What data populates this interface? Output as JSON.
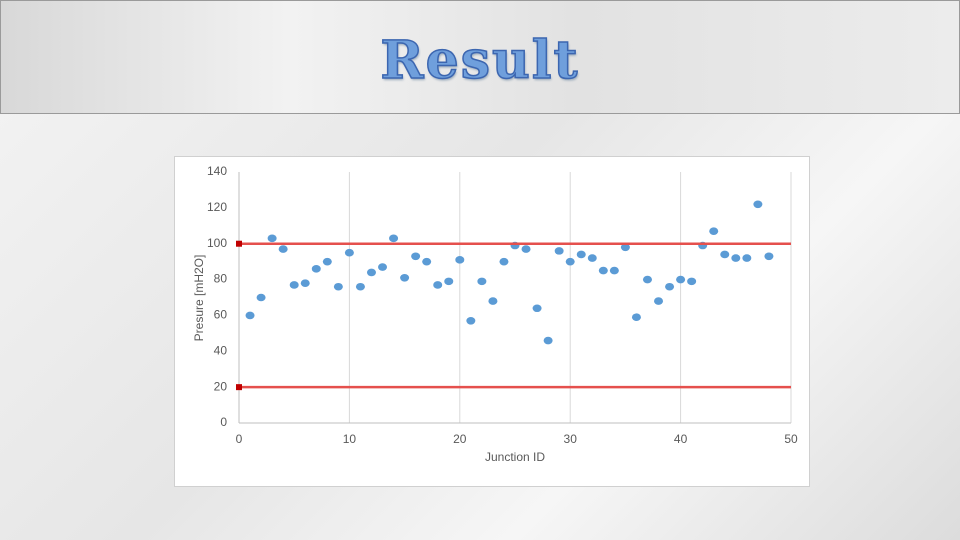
{
  "header": {
    "title": "Result"
  },
  "chart_data": {
    "type": "scatter",
    "x_label": "Junction ID",
    "y_label": "Presure [mH2O]",
    "xlim": [
      0,
      50
    ],
    "xticks": [
      0,
      10,
      20,
      30,
      40,
      50
    ],
    "ylim": [
      0,
      140
    ],
    "yticks": [
      0,
      20,
      40,
      60,
      80,
      100,
      120,
      140
    ],
    "grid": "x",
    "series": [
      {
        "color": "#5b9bd5",
        "mode": "points",
        "x": [
          1,
          2,
          3,
          4,
          5,
          6,
          7,
          8,
          9,
          10,
          11,
          12,
          13,
          14,
          15,
          16,
          17,
          18,
          19,
          20,
          21,
          22,
          23,
          24,
          25,
          26,
          27,
          28,
          29,
          30,
          31,
          32,
          33,
          34,
          35,
          36,
          37,
          38,
          39,
          40,
          41,
          42,
          43,
          44,
          45,
          46,
          47,
          48
        ],
        "values": [
          60,
          70,
          103,
          97,
          77,
          78,
          86,
          90,
          76,
          95,
          76,
          84,
          87,
          103,
          81,
          93,
          90,
          77,
          79,
          91,
          57,
          79,
          68,
          90,
          99,
          97,
          64,
          46,
          96,
          90,
          94,
          92,
          85,
          85,
          98,
          59,
          80,
          68,
          76,
          80,
          79,
          99,
          107,
          94,
          92,
          92,
          122,
          93
        ]
      },
      {
        "color": "#e5504d",
        "mode": "line",
        "x": [
          0,
          50
        ],
        "values": [
          100,
          100
        ]
      },
      {
        "color": "#e5504d",
        "mode": "line",
        "x": [
          0,
          50
        ],
        "values": [
          20,
          20
        ]
      }
    ]
  }
}
